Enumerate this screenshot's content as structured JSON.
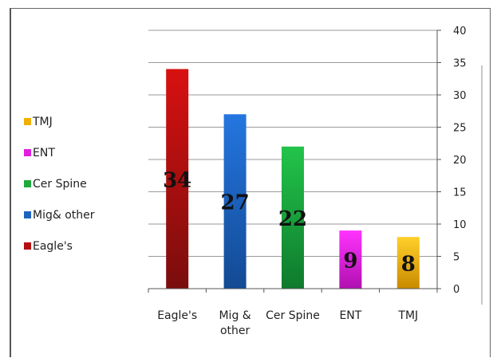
{
  "chart_data": {
    "type": "bar",
    "title": "",
    "xlabel": "",
    "ylabel": "",
    "categories": [
      "Eagle's",
      "Mig & other",
      "Cer Spine",
      "ENT",
      "TMJ"
    ],
    "category_lines": [
      [
        "Eagle's"
      ],
      [
        "Mig &",
        "other"
      ],
      [
        "Cer Spine"
      ],
      [
        "ENT"
      ],
      [
        "TMJ"
      ]
    ],
    "values": [
      34,
      27,
      22,
      9,
      8
    ],
    "value_labels": [
      "34",
      "27",
      "22",
      "9",
      "8"
    ],
    "ylim": [
      0,
      40
    ],
    "yticks": [
      0,
      5,
      10,
      15,
      20,
      25,
      30,
      35,
      40
    ],
    "y_axis_side": "right",
    "grid": true,
    "legend_position": "left",
    "legend": [
      {
        "label": "TMJ",
        "color": "#f0b000"
      },
      {
        "label": "ENT",
        "color": "#e020e0"
      },
      {
        "label": "Cer Spine",
        "color": "#1faa3c"
      },
      {
        "label": "Mig& other",
        "color": "#1f63c0"
      },
      {
        "label": "Eagle's",
        "color": "#b50f0f"
      }
    ],
    "bar_colors": [
      {
        "top": "#d81010",
        "bottom": "#7a0d0d"
      },
      {
        "top": "#2476e0",
        "bottom": "#134a93"
      },
      {
        "top": "#22c44a",
        "bottom": "#0f7a2d"
      },
      {
        "top": "#ff33ff",
        "bottom": "#b010b0"
      },
      {
        "top": "#ffd02a",
        "bottom": "#c98a00"
      }
    ]
  }
}
